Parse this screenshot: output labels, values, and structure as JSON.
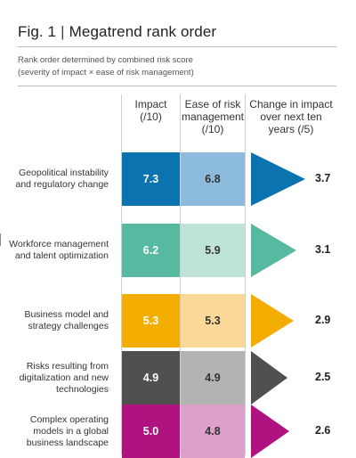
{
  "header": {
    "fig_label": "Fig. 1",
    "separator": "|",
    "title": "Megatrend rank order",
    "subtitle_line1": "Rank order determined by combined risk score",
    "subtitle_line2": "(severity of impact × ease of risk management)"
  },
  "chart_data": {
    "type": "table",
    "columns": [
      "Impact\n(/10)",
      "Ease of risk\nmanagement\n(/10)",
      "Change in impact\nover next ten\nyears (/5)"
    ],
    "rows": [
      {
        "label": "Geopolitical instability\nand regulatory change",
        "impact": 7.3,
        "ease": 6.8,
        "change": 3.7,
        "color": "#0a73b0",
        "light_color": "#8dbbdd"
      },
      {
        "label": "Workforce management\nand talent optimization",
        "impact": 6.2,
        "ease": 5.9,
        "change": 3.1,
        "color": "#57b9a0",
        "light_color": "#bfe3d8"
      },
      {
        "label": "Business model and\nstrategy challenges",
        "impact": 5.3,
        "ease": 5.3,
        "change": 2.9,
        "color": "#f2ad00",
        "light_color": "#fad898"
      },
      {
        "label": "Risks resulting from\ndigitalization and new\ntechnologies",
        "impact": 4.9,
        "ease": 4.9,
        "change": 2.5,
        "color": "#505050",
        "light_color": "#b3b3b3"
      },
      {
        "label": "Complex operating\nmodels in a global\nbusiness landscape",
        "impact": 5.0,
        "ease": 4.8,
        "change": 2.6,
        "color": "#b0127f",
        "light_color": "#dda0cc"
      }
    ]
  }
}
